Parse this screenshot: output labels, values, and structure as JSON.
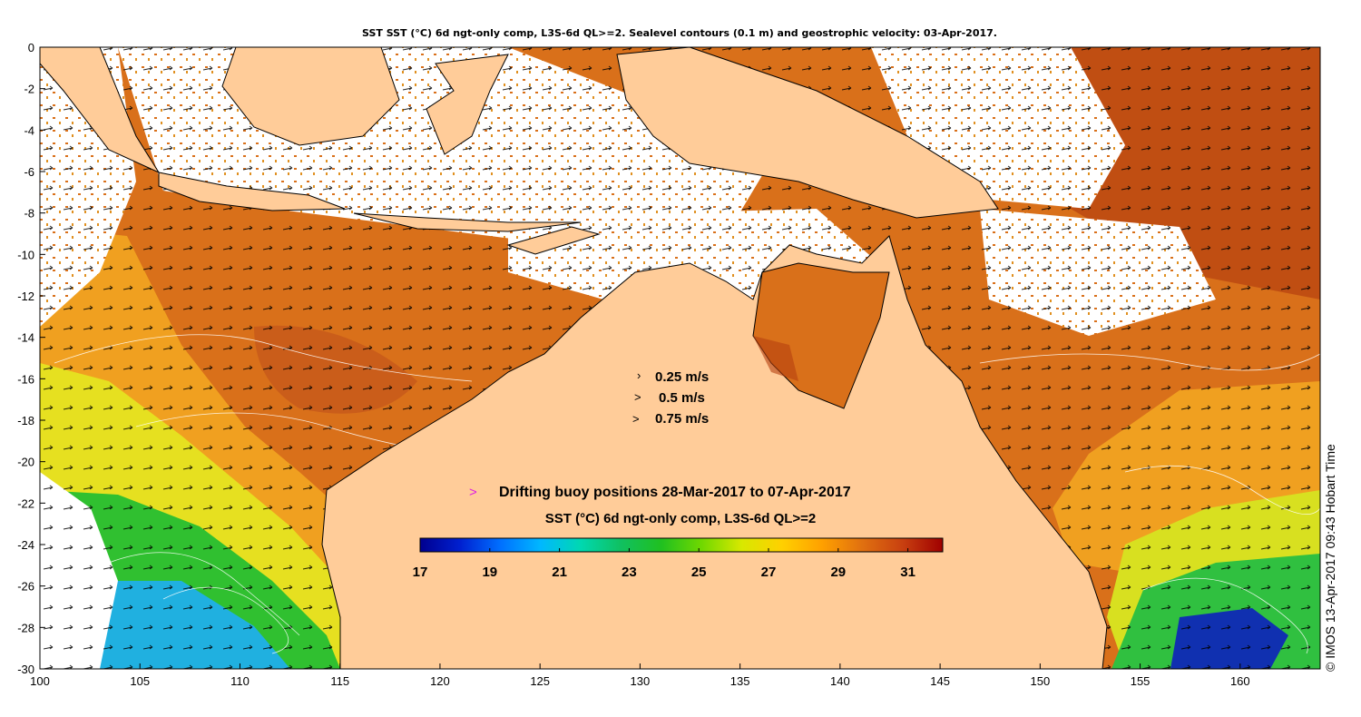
{
  "title": "SST SST (°C) 6d ngt-only comp, L3S-6d QL>=2. Sealevel contours (0.1 m) and geostrophic velocity: 03-Apr-2017.",
  "credit": "© IMOS 13-Apr-2017 09:43 Hobart Time",
  "x_axis": {
    "ticks": [
      {
        "value": 100,
        "label": "100"
      },
      {
        "value": 105,
        "label": "105"
      },
      {
        "value": 110,
        "label": "110"
      },
      {
        "value": 115,
        "label": "115"
      },
      {
        "value": 120,
        "label": "120"
      },
      {
        "value": 125,
        "label": "125"
      },
      {
        "value": 130,
        "label": "130"
      },
      {
        "value": 135,
        "label": "135"
      },
      {
        "value": 140,
        "label": "140"
      },
      {
        "value": 145,
        "label": "145"
      },
      {
        "value": 150,
        "label": "150"
      },
      {
        "value": 155,
        "label": "155"
      },
      {
        "value": 160,
        "label": "160"
      }
    ],
    "range": [
      100,
      164
    ]
  },
  "y_axis": {
    "ticks": [
      {
        "value": 0,
        "label": "0"
      },
      {
        "value": -2,
        "label": "-2"
      },
      {
        "value": -4,
        "label": "-4"
      },
      {
        "value": -6,
        "label": "-6"
      },
      {
        "value": -8,
        "label": "-8"
      },
      {
        "value": -10,
        "label": "-10"
      },
      {
        "value": -12,
        "label": "-12"
      },
      {
        "value": -14,
        "label": "-14"
      },
      {
        "value": -16,
        "label": "-16"
      },
      {
        "value": -18,
        "label": "-18"
      },
      {
        "value": -20,
        "label": "-20"
      },
      {
        "value": -22,
        "label": "-22"
      },
      {
        "value": -24,
        "label": "-24"
      },
      {
        "value": -26,
        "label": "-26"
      },
      {
        "value": -28,
        "label": "-28"
      },
      {
        "value": -30,
        "label": "-30"
      }
    ],
    "range": [
      -30,
      0
    ]
  },
  "velocity_legend": [
    {
      "label": "0.25 m/s",
      "value": 0.25
    },
    {
      "label": "0.5 m/s",
      "value": 0.5
    },
    {
      "label": "0.75 m/s",
      "value": 0.75
    }
  ],
  "buoy_legend": {
    "marker": ">",
    "marker_color": "#e020e0",
    "label": "Drifting buoy positions 28-Mar-2017 to 07-Apr-2017"
  },
  "colorbar": {
    "title": "SST (°C) 6d ngt-only comp, L3S-6d QL>=2",
    "min": 17,
    "max": 32,
    "tick_labels": [
      "17",
      "19",
      "21",
      "23",
      "25",
      "27",
      "29",
      "31"
    ],
    "tick_values": [
      17,
      19,
      21,
      23,
      25,
      27,
      29,
      31
    ],
    "colormap": [
      "#00008f",
      "#0020d0",
      "#0070ff",
      "#00b8ff",
      "#00d8b0",
      "#10c060",
      "#20c020",
      "#70d800",
      "#d8e800",
      "#ffd000",
      "#ffa000",
      "#e07010",
      "#c84010",
      "#a00000"
    ]
  },
  "colors": {
    "land": "#ffcc99",
    "coast": "#000000",
    "no_data": "#ffffff",
    "sst_warm": "#d9701a",
    "sst_hot": "#b5400f",
    "sst_mid": "#f0a020",
    "sst_cool_yellow": "#e6e020",
    "sst_cool_green": "#30c030",
    "sst_cold_cyan": "#20b0e0",
    "sst_cold_blue": "#1030b0"
  }
}
